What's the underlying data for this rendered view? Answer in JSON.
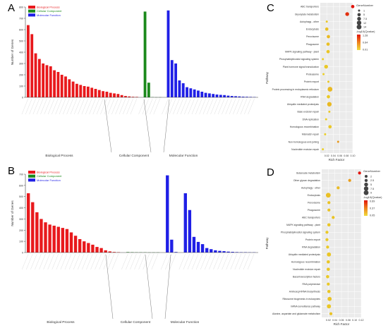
{
  "panel_labels": {
    "a": "A",
    "b": "B",
    "c": "C",
    "d": "D"
  },
  "colors": {
    "bp": "#e8191c",
    "cc": "#1c8a1c",
    "mf": "#1f1fe6"
  },
  "chart_data": [
    {
      "type": "bar",
      "panel": "A",
      "ylabel": "Number of Genes",
      "ylim": [
        0,
        800
      ],
      "yticks": [
        0,
        100,
        200,
        300,
        400,
        500,
        600,
        700,
        800
      ],
      "legend": [
        "Biological Process",
        "Cellular Component",
        "Molecular Function"
      ],
      "groups": [
        "Biological Process",
        "Cellular Component",
        "Molecular Function"
      ],
      "series": [
        {
          "name": "Biological Process",
          "values": [
            640,
            560,
            390,
            340,
            300,
            285,
            275,
            240,
            225,
            200,
            185,
            160,
            140,
            120,
            110,
            100,
            95,
            85,
            75,
            65,
            55,
            50,
            40,
            35,
            30,
            20,
            12,
            8,
            5,
            4
          ]
        },
        {
          "name": "Cellular Component",
          "values": [
            760,
            130,
            2,
            1,
            1
          ]
        },
        {
          "name": "Molecular Function",
          "values": [
            770,
            330,
            300,
            150,
            125,
            90,
            80,
            70,
            60,
            50,
            40,
            35,
            30,
            25,
            22,
            20,
            15,
            12,
            10,
            8,
            6,
            5,
            4,
            3
          ]
        }
      ]
    },
    {
      "type": "bar",
      "panel": "B",
      "ylabel": "Number of Genes",
      "ylim": [
        0,
        700
      ],
      "yticks": [
        0,
        100,
        200,
        300,
        400,
        500,
        600,
        700
      ],
      "legend": [
        "Biological Process",
        "Cellular Component",
        "Molecular Function"
      ],
      "groups": [
        "Biological Process",
        "Cellular Component",
        "Molecular Function"
      ],
      "series": [
        {
          "name": "Biological Process",
          "values": [
            530,
            450,
            360,
            300,
            270,
            250,
            240,
            230,
            220,
            210,
            180,
            150,
            120,
            100,
            85,
            70,
            50,
            40,
            20,
            10,
            5,
            3
          ]
        },
        {
          "name": "Cellular Component",
          "values": [
            4,
            3,
            2,
            2,
            2,
            1,
            1,
            1
          ]
        },
        {
          "name": "Molecular Function",
          "values": [
            690,
            115,
            5
          ]
        },
        {
          "name": "Molecular Function",
          "values": [
            530,
            380,
            140,
            95,
            75,
            40,
            30,
            20,
            15,
            12,
            8,
            6,
            4,
            3,
            3,
            2,
            2
          ]
        }
      ]
    },
    {
      "type": "scatter",
      "panel": "C",
      "xlabel": "Rich Factor",
      "ylabel": "Pathway",
      "xlim": [
        0.0,
        0.1
      ],
      "xticks": [
        "0.02",
        "0.04",
        "0.06",
        "0.08",
        "0.10"
      ],
      "size_legend_title": "GeneNumber",
      "size_legend": [
        "1",
        "5",
        "7.5",
        "12",
        "14"
      ],
      "color_legend_title": "-log10(Qvalue)",
      "color_legend": [
        "1.28",
        "0.64",
        "0.01"
      ],
      "points": [
        {
          "label": "ABC transporters",
          "x": 0.1,
          "size": 5,
          "q": 1.28
        },
        {
          "label": "Glyoxylate metabolism",
          "x": 0.083,
          "size": 7.5,
          "q": 1.1
        },
        {
          "label": "Autophagy - other",
          "x": 0.02,
          "size": 1,
          "q": 0.1
        },
        {
          "label": "Endocytosis",
          "x": 0.02,
          "size": 5,
          "q": 0.15
        },
        {
          "label": "Peroxisome",
          "x": 0.025,
          "size": 5,
          "q": 0.2
        },
        {
          "label": "Phagosome",
          "x": 0.024,
          "size": 5,
          "q": 0.15
        },
        {
          "label": "MAPK signaling pathway - plant",
          "x": 0.024,
          "size": 5,
          "q": 0.12
        },
        {
          "label": "Phosphatidylinositol signaling system",
          "x": 0.008,
          "size": 1,
          "q": 0.05
        },
        {
          "label": "Plant hormone signal transduction",
          "x": 0.018,
          "size": 7.5,
          "q": 0.1
        },
        {
          "label": "Proteasome",
          "x": 0.01,
          "size": 1,
          "q": 0.05
        },
        {
          "label": "Protein export",
          "x": 0.025,
          "size": 1,
          "q": 0.1
        },
        {
          "label": "Protein processing in endoplasmic reticulum",
          "x": 0.03,
          "size": 14,
          "q": 0.2
        },
        {
          "label": "RNA degradation",
          "x": 0.025,
          "size": 5,
          "q": 0.1
        },
        {
          "label": "Ubiquitin mediated proteolysis",
          "x": 0.028,
          "size": 12,
          "q": 0.2
        },
        {
          "label": "Base excision repair",
          "x": 0.028,
          "size": 1,
          "q": 0.1
        },
        {
          "label": "DNA replication",
          "x": 0.018,
          "size": 1,
          "q": 0.05
        },
        {
          "label": "Homologous recombination",
          "x": 0.03,
          "size": 5,
          "q": 0.1
        },
        {
          "label": "Mismatch repair",
          "x": 0.015,
          "size": 1,
          "q": 0.05
        },
        {
          "label": "Non-homologous end-joining",
          "x": 0.055,
          "size": 1,
          "q": 0.4
        },
        {
          "label": "Nucleotide excision repair",
          "x": 0.008,
          "size": 1,
          "q": 0.05
        }
      ]
    },
    {
      "type": "scatter",
      "panel": "D",
      "xlabel": "Rich Factor",
      "ylabel": "Pathway",
      "xlim": [
        0.0,
        0.12
      ],
      "xticks": [
        "0.02",
        "0.04",
        "0.06",
        "0.08",
        "0.10",
        "0.12"
      ],
      "size_legend_title": "GeneNumber",
      "size_legend": [
        "2",
        "2.5",
        "5",
        "7.5",
        "9"
      ],
      "color_legend_title": "-log10(Qvalue)",
      "color_legend": [
        "0.69",
        "0.37",
        "0.05"
      ],
      "points": [
        {
          "label": "Butanoate metabolism",
          "x": 0.115,
          "size": 2,
          "q": 0.69
        },
        {
          "label": "Other glycan degradation",
          "x": 0.085,
          "size": 2,
          "q": 0.2
        },
        {
          "label": "Autophagy - other",
          "x": 0.05,
          "size": 2,
          "q": 0.1
        },
        {
          "label": "Endocytosis",
          "x": 0.02,
          "size": 7.5,
          "q": 0.08
        },
        {
          "label": "Peroxisome",
          "x": 0.022,
          "size": 2,
          "q": 0.07
        },
        {
          "label": "Phagosome",
          "x": 0.022,
          "size": 2,
          "q": 0.07
        },
        {
          "label": "ABC transporters",
          "x": 0.035,
          "size": 2,
          "q": 0.07
        },
        {
          "label": "MAPK signaling pathway - plant",
          "x": 0.022,
          "size": 2.5,
          "q": 0.06
        },
        {
          "label": "Phosphatidylinositol signaling system",
          "x": 0.016,
          "size": 2,
          "q": 0.05
        },
        {
          "label": "Protein export",
          "x": 0.016,
          "size": 2,
          "q": 0.05
        },
        {
          "label": "RNA degradation",
          "x": 0.018,
          "size": 2,
          "q": 0.05
        },
        {
          "label": "Ubiquitin mediated proteolysis",
          "x": 0.022,
          "size": 5,
          "q": 0.06
        },
        {
          "label": "Homologous recombination",
          "x": 0.02,
          "size": 2.5,
          "q": 0.06
        },
        {
          "label": "Nucleotide excision repair",
          "x": 0.02,
          "size": 2.5,
          "q": 0.06
        },
        {
          "label": "Basal transcription factors",
          "x": 0.018,
          "size": 2.5,
          "q": 0.05
        },
        {
          "label": "RNA polymerase",
          "x": 0.02,
          "size": 2,
          "q": 0.05
        },
        {
          "label": "Aminoacyl-tRNA biosynthesis",
          "x": 0.022,
          "size": 2.5,
          "q": 0.06
        },
        {
          "label": "Ribosome biogenesis in eukaryotes",
          "x": 0.024,
          "size": 5,
          "q": 0.07
        },
        {
          "label": "mRNA surveillance pathway",
          "x": 0.022,
          "size": 5,
          "q": 0.06
        },
        {
          "label": "Alanine, aspartate and glutamate metabolism",
          "x": 0.028,
          "size": 2,
          "q": 0.07
        }
      ]
    }
  ]
}
